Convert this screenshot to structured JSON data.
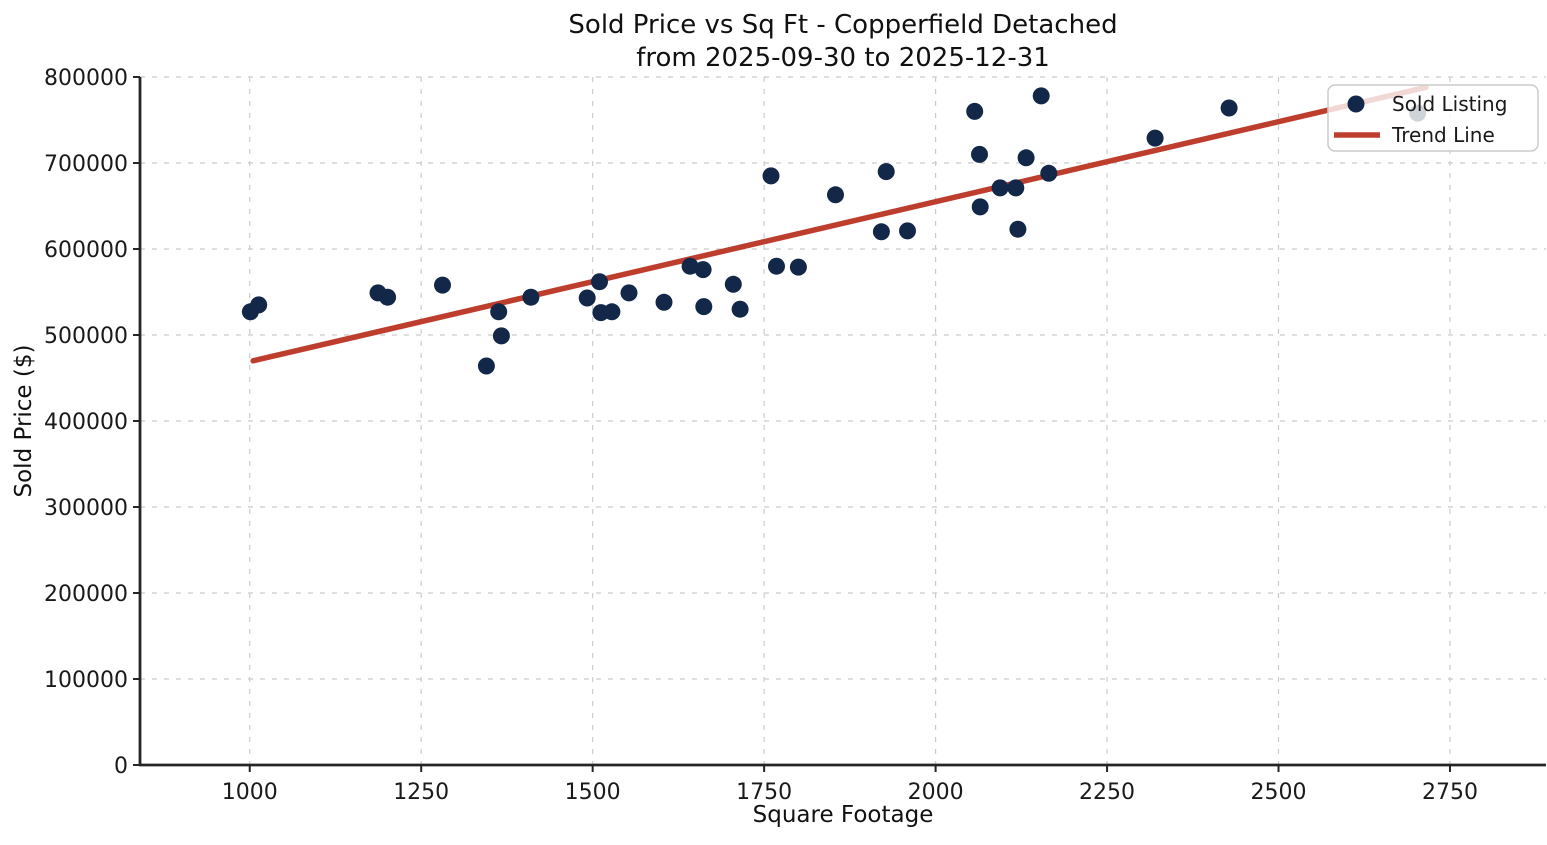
{
  "chart_data": {
    "type": "scatter",
    "title": "Sold Price vs Sq Ft - Copperfield Detached",
    "subtitle": "from 2025-09-30 to 2025-12-31",
    "xlabel": "Square Footage",
    "ylabel": "Sold Price ($)",
    "xlim": [
      840,
      2890
    ],
    "ylim": [
      0,
      800000
    ],
    "x_ticks": [
      1000,
      1250,
      1500,
      1750,
      2000,
      2250,
      2500,
      2750
    ],
    "y_ticks": [
      0,
      100000,
      200000,
      300000,
      400000,
      500000,
      600000,
      700000,
      800000
    ],
    "grid": true,
    "legend_position": "upper right",
    "series": [
      {
        "name": "Sold Listing",
        "type": "scatter",
        "color": "#132848",
        "points": [
          [
            1001,
            527000
          ],
          [
            1013,
            535000
          ],
          [
            1187,
            549000
          ],
          [
            1201,
            544000
          ],
          [
            1281,
            558000
          ],
          [
            1345,
            464000
          ],
          [
            1363,
            527000
          ],
          [
            1367,
            499000
          ],
          [
            1410,
            544000
          ],
          [
            1492,
            543000
          ],
          [
            1510,
            562000
          ],
          [
            1512,
            526000
          ],
          [
            1528,
            527000
          ],
          [
            1553,
            549000
          ],
          [
            1604,
            538000
          ],
          [
            1642,
            580000
          ],
          [
            1661,
            576000
          ],
          [
            1662,
            533000
          ],
          [
            1705,
            559000
          ],
          [
            1715,
            530000
          ],
          [
            1760,
            685000
          ],
          [
            1768,
            580000
          ],
          [
            1800,
            579000
          ],
          [
            1854,
            663000
          ],
          [
            1921,
            620000
          ],
          [
            1928,
            690000
          ],
          [
            1959,
            621000
          ],
          [
            2057,
            760000
          ],
          [
            2064,
            710000
          ],
          [
            2065,
            649000
          ],
          [
            2094,
            671000
          ],
          [
            2117,
            671000
          ],
          [
            2120,
            623000
          ],
          [
            2132,
            706000
          ],
          [
            2154,
            778000
          ],
          [
            2165,
            688000
          ],
          [
            2320,
            729000
          ],
          [
            2428,
            764000
          ],
          [
            2703,
            758000
          ]
        ]
      },
      {
        "name": "Trend Line",
        "type": "line",
        "color": "#be3e2e",
        "points": [
          [
            1005,
            470000
          ],
          [
            2715,
            788000
          ]
        ]
      }
    ],
    "colors": {
      "scatter": "#132848",
      "trend": "#be3e2e",
      "grid": "#cbcbcb",
      "spine": "#262626",
      "legend_border": "#cccccc",
      "background": "#ffffff"
    }
  }
}
